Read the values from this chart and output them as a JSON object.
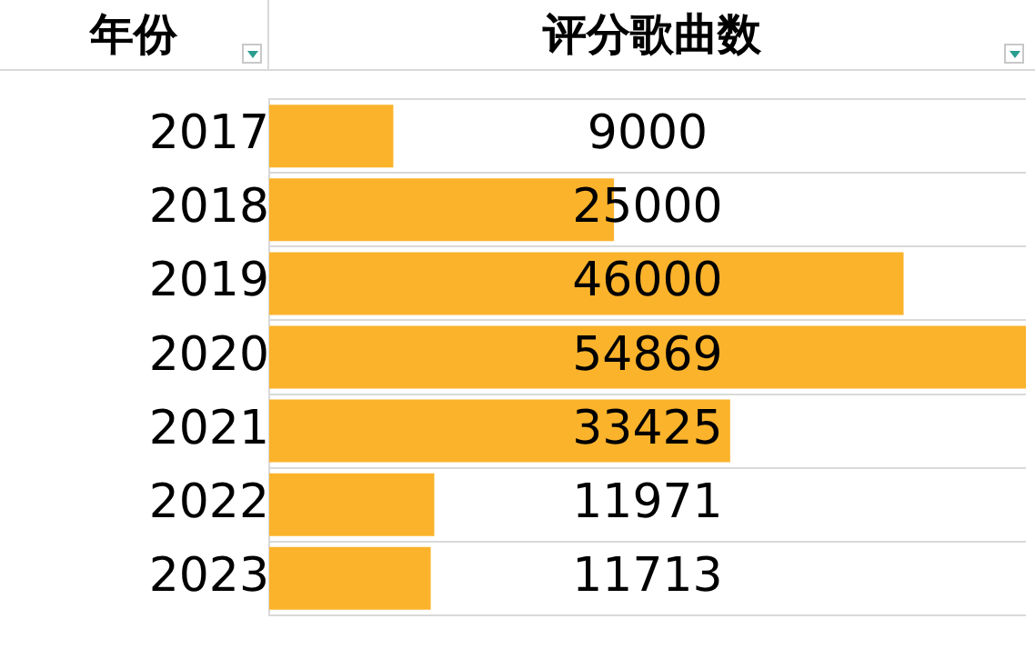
{
  "chart_data": {
    "type": "bar",
    "orientation": "horizontal",
    "ylabel": "年份",
    "xlabel": "评分歌曲数",
    "categories": [
      "2017",
      "2018",
      "2019",
      "2020",
      "2021",
      "2022",
      "2023"
    ],
    "values": [
      9000,
      25000,
      46000,
      54869,
      33425,
      11971,
      11713
    ],
    "color": "#fbb32b",
    "data_labels": true,
    "grid": "y",
    "legend": false,
    "tick_labels": "y"
  }
}
